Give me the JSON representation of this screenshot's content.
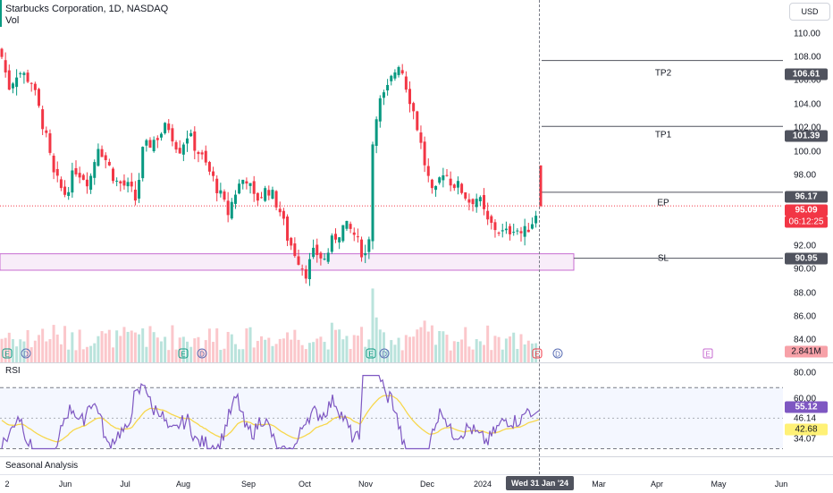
{
  "header": {
    "symbol_title": "Starbucks Corporation, 1D, NASDAQ",
    "volume_label": "Vol",
    "currency_button": "USD"
  },
  "price_axis": {
    "ticks": [
      "110.00",
      "108.00",
      "106.00",
      "104.00",
      "102.00",
      "100.00",
      "98.00",
      "92.00",
      "90.00",
      "88.00",
      "86.00",
      "84.00"
    ],
    "tags": {
      "tp2": "106.61",
      "tp1": "101.39",
      "ep": "96.17",
      "last_price": "95.09",
      "countdown": "06:12:25",
      "sl": "90.95",
      "volume": "2.841M"
    }
  },
  "annotations": {
    "tp2_label": "TP2",
    "tp1_label": "TP1",
    "ep_label": "EP",
    "sl_label": "SL"
  },
  "levels": {
    "tp2": 106.61,
    "tp1": 101.39,
    "ep": 96.17,
    "last": 95.09,
    "sl": 90.95,
    "zone_top": 91.3,
    "zone_bottom": 90.0
  },
  "events": {
    "earnings": "E",
    "dividend": "D"
  },
  "rsi": {
    "label": "RSI",
    "ticks": [
      "80.00",
      "60.00",
      "46.14",
      "34.07"
    ],
    "value": "55.12",
    "ma_value": "42.68",
    "upper_band": 70,
    "lower_band": 30
  },
  "seasonal_label": "Seasonal Analysis",
  "time_axis": {
    "ticks": [
      "2",
      "Jun",
      "Jul",
      "Aug",
      "Sep",
      "Oct",
      "Nov",
      "Dec",
      "2024",
      "Mar",
      "Apr",
      "May",
      "Jun"
    ],
    "crosshair_date": "Wed 31 Jan '24"
  },
  "colors": {
    "up": "#089981",
    "down": "#f23645",
    "rsi_line": "#7e57c2",
    "rsi_ma": "#f7d74c",
    "zone": "#c76bd1",
    "level_line": "#50535e",
    "tag_dark": "#50535e",
    "tag_rsi": "#7e57c2",
    "tag_rsi_ma": "#fff176"
  },
  "chart_data": {
    "type": "candlestick",
    "title": "Starbucks Corporation, 1D, NASDAQ",
    "ylim": [
      82.7,
      111.4
    ],
    "control_points": [
      [
        0,
        107.5
      ],
      [
        10,
        104.5
      ],
      [
        20,
        105.8
      ],
      [
        35,
        105.0
      ],
      [
        50,
        101.0
      ],
      [
        60,
        97.5
      ],
      [
        72,
        96.0
      ],
      [
        85,
        98.0
      ],
      [
        100,
        97.0
      ],
      [
        110,
        100.0
      ],
      [
        120,
        98.5
      ],
      [
        130,
        97.0
      ],
      [
        145,
        96.5
      ],
      [
        152,
        95.5
      ],
      [
        160,
        99.5
      ],
      [
        175,
        100.5
      ],
      [
        188,
        101.5
      ],
      [
        200,
        99.5
      ],
      [
        210,
        100.8
      ],
      [
        225,
        99.0
      ],
      [
        240,
        97.0
      ],
      [
        255,
        94.5
      ],
      [
        265,
        96.5
      ],
      [
        275,
        97.5
      ],
      [
        285,
        95.5
      ],
      [
        300,
        96.5
      ],
      [
        312,
        95.0
      ],
      [
        322,
        92.5
      ],
      [
        333,
        91.0
      ],
      [
        342,
        89.8
      ],
      [
        352,
        91.5
      ],
      [
        363,
        90.8
      ],
      [
        373,
        92.5
      ],
      [
        385,
        93.5
      ],
      [
        395,
        93.0
      ],
      [
        404,
        91.6
      ],
      [
        412,
        91.0
      ],
      [
        416,
        99.5
      ],
      [
        422,
        103.0
      ],
      [
        432,
        104.0
      ],
      [
        440,
        105.5
      ],
      [
        447,
        106.6
      ],
      [
        455,
        104.5
      ],
      [
        465,
        102.0
      ],
      [
        475,
        98.5
      ],
      [
        485,
        95.5
      ],
      [
        495,
        98.0
      ],
      [
        505,
        97.0
      ],
      [
        515,
        96.5
      ],
      [
        525,
        95.5
      ],
      [
        535,
        95.8
      ],
      [
        545,
        93.8
      ],
      [
        555,
        93.3
      ],
      [
        565,
        92.8
      ],
      [
        575,
        93.5
      ],
      [
        585,
        92.8
      ],
      [
        595,
        93.8
      ],
      [
        603,
        95.1
      ]
    ],
    "volume_ylim": [
      0,
      2.841
    ],
    "rsi_ylim": [
      25,
      86
    ]
  }
}
